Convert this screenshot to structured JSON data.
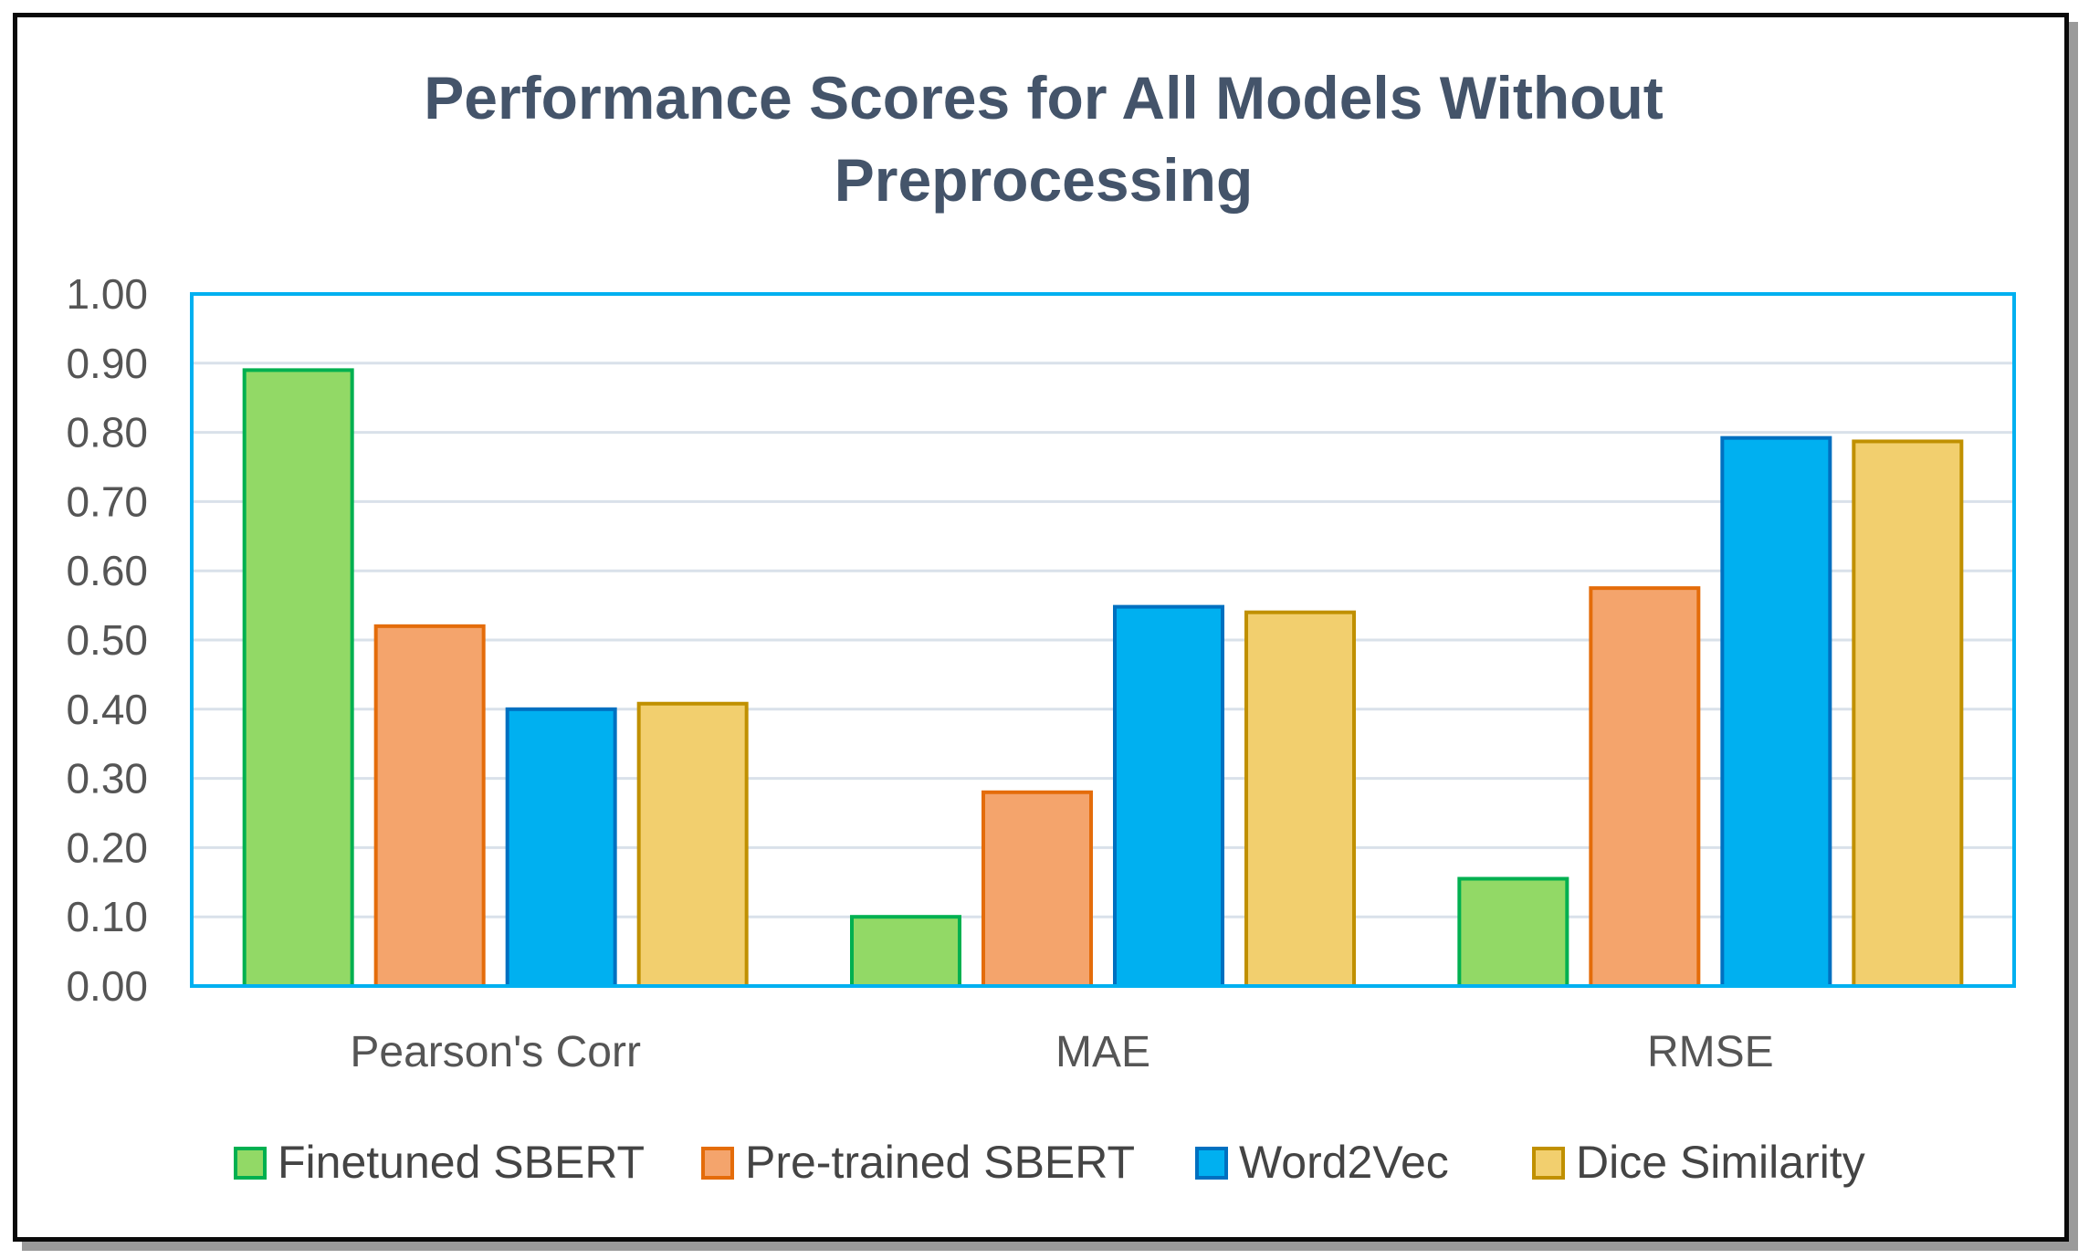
{
  "chart_data": {
    "type": "bar",
    "title_lines": [
      "Performance Scores for All Models Without",
      "Preprocessing"
    ],
    "categories": [
      "Pearson's Corr",
      "MAE",
      "RMSE"
    ],
    "series": [
      {
        "name": "Finetuned SBERT",
        "values": [
          0.89,
          0.1,
          0.155
        ],
        "fill": "#92d966",
        "stroke": "#00b050"
      },
      {
        "name": "Pre-trained SBERT",
        "values": [
          0.52,
          0.28,
          0.575
        ],
        "fill": "#f4a46c",
        "stroke": "#e46c0a"
      },
      {
        "name": "Word2Vec",
        "values": [
          0.4,
          0.548,
          0.792
        ],
        "fill": "#00b0f0",
        "stroke": "#0070c0"
      },
      {
        "name": "Dice Similarity",
        "values": [
          0.408,
          0.54,
          0.787
        ],
        "fill": "#f2cf6e",
        "stroke": "#c09000"
      }
    ],
    "yticks": [
      "0.00",
      "0.10",
      "0.20",
      "0.30",
      "0.40",
      "0.50",
      "0.60",
      "0.70",
      "0.80",
      "0.90",
      "1.00"
    ],
    "ylim": [
      0,
      1
    ],
    "xlabel": "",
    "ylabel": "",
    "grid": true,
    "legend_position": "bottom",
    "plot_border_color": "#00b0f0",
    "grid_color": "#d9e1ea"
  }
}
